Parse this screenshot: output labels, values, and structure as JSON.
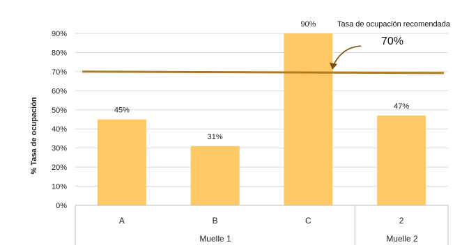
{
  "chart_data": {
    "type": "bar",
    "categories": [
      "A",
      "B",
      "C",
      "2"
    ],
    "groups": [
      {
        "label": "Muelle 1",
        "categories": [
          "A",
          "B",
          "C"
        ]
      },
      {
        "label": "Muelle 2",
        "categories": [
          "2"
        ]
      }
    ],
    "values": [
      45,
      31,
      90,
      47
    ],
    "data_labels": [
      "45%",
      "31%",
      "90%",
      "47%"
    ],
    "ylabel": "% Tasa de ocupación",
    "ylim": [
      0,
      90
    ],
    "yticks": [
      "0%",
      "10%",
      "20%",
      "30%",
      "40%",
      "50%",
      "60%",
      "70%",
      "80%",
      "90%"
    ],
    "reference_line": {
      "value": 70,
      "label": "Tasa de ocupación recomendada",
      "value_label": "70%"
    },
    "grid": true,
    "colors": {
      "bar": "#FFC966",
      "reference_line": "#B07A1E",
      "grid": "#D9D9D9",
      "arrow": "#7A5010"
    }
  }
}
